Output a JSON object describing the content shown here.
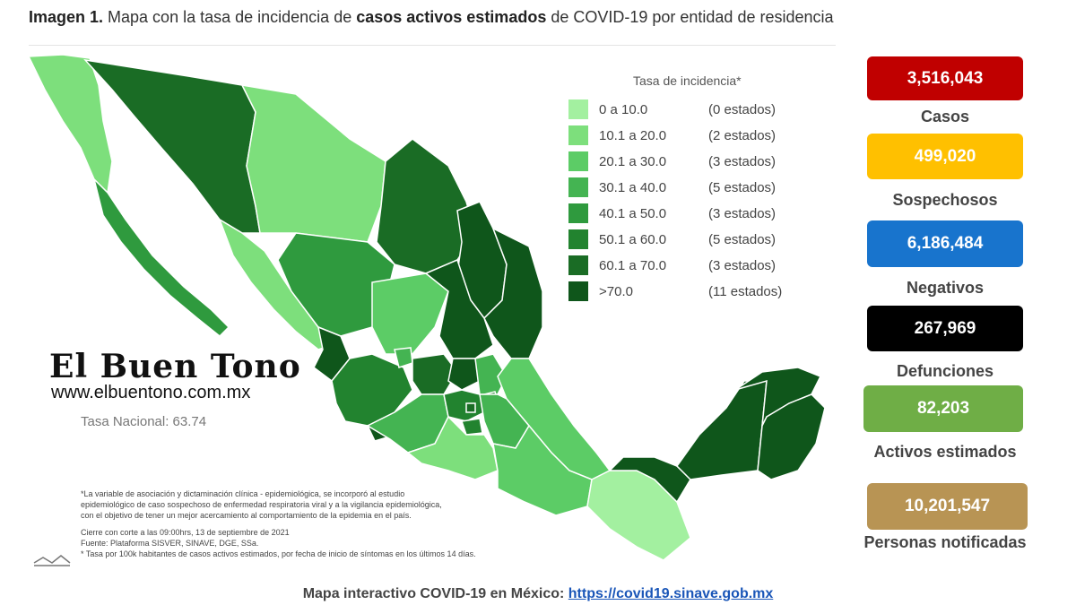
{
  "header": {
    "prefix": "Imagen 1.",
    "part1": " Mapa con la tasa de incidencia de ",
    "bold": "casos activos estimados",
    "part2": " de COVID-19 por entidad de residencia"
  },
  "legend": {
    "title": "Tasa de incidencia*",
    "rows": [
      {
        "range": "0  a  10.0",
        "count": "(0 estados)",
        "color": "#a3f0a0"
      },
      {
        "range": "10.1 a  20.0",
        "count": "(2 estados)",
        "color": "#7ddf7c"
      },
      {
        "range": "20.1 a  30.0",
        "count": "(3 estados)",
        "color": "#5ccc66"
      },
      {
        "range": "30.1 a  40.0",
        "count": "(5 estados)",
        "color": "#44b452"
      },
      {
        "range": "40.1 a  50.0",
        "count": "(3 estados)",
        "color": "#2f9a3e"
      },
      {
        "range": "50.1 a  60.0",
        "count": "(5 estados)",
        "color": "#22832f"
      },
      {
        "range": "60.1 a  70.0",
        "count": "(3 estados)",
        "color": "#1a6c25"
      },
      {
        "range": ">70.0",
        "count": "(11 estados)",
        "color": "#0f561b"
      }
    ]
  },
  "brand": {
    "name": "El Buen Tono",
    "url": "www.elbuentono.com.mx"
  },
  "tasa_nacional": "Tasa Nacional: 63.74",
  "notes": [
    "*La variable de asociación y dictaminación clínica - epidemiológica, se incorporó al estudio",
    "epidemiológico de caso sospechoso de enfermedad respiratoria viral y a la vigilancia epidemiológica,",
    "con el objetivo de tener un mejor acercamiento al comportamiento de la epidemia en el país.",
    "Cierre con corte a las 09:00hrs, 13 de septiembre de 2021",
    "Fuente: Plataforma SISVER, SINAVE, DGE, SSa.",
    "* Tasa por 100k habitantes de casos activos estimados, por fecha de inicio de síntomas en los últimos 14 días."
  ],
  "stats": [
    {
      "value": "3,516,043",
      "label": "Casos",
      "color": "#c00000"
    },
    {
      "value": "499,020",
      "label": "Sospechosos",
      "color": "#ffc000"
    },
    {
      "value": "6,186,484",
      "label": "Negativos",
      "color": "#1874cd"
    },
    {
      "value": "267,969",
      "label": "Defunciones",
      "color": "#000000"
    },
    {
      "value": "82,203",
      "label": "Activos estimados",
      "color": "#6fae46"
    },
    {
      "value": "10,201,547",
      "label": "Personas notificadas",
      "color": "#b89454"
    }
  ],
  "footer": {
    "text": "Mapa interactivo COVID-19 en México: ",
    "link": "https://covid19.sinave.gob.mx"
  }
}
